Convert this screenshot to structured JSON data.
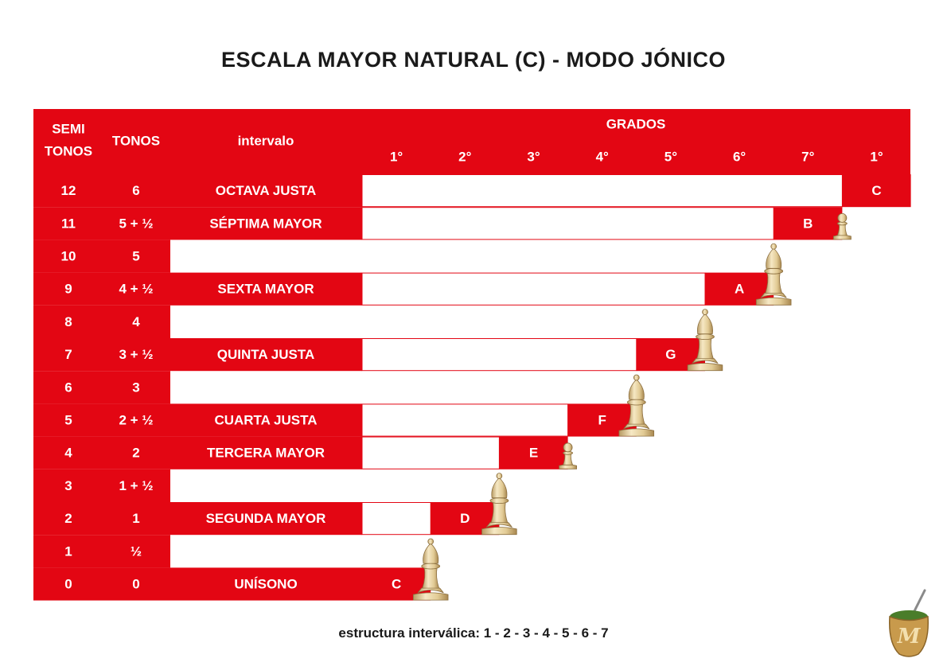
{
  "title": "ESCALA MAYOR NATURAL (C)  - MODO JÓNICO",
  "header": {
    "semitones": [
      "SEMI",
      "TONOS"
    ],
    "tones": "TONOS",
    "interval": "intervalo",
    "grades_title": "GRADOS",
    "degrees": [
      "1°",
      "2°",
      "3°",
      "4°",
      "5°",
      "6°",
      "7°",
      "1°"
    ]
  },
  "rows": [
    {
      "semitones": "12",
      "tones": "6",
      "interval": "OCTAVA JUSTA",
      "note": "C",
      "degree": 8
    },
    {
      "semitones": "11",
      "tones": "5 + ½",
      "interval": "SÉPTIMA MAYOR",
      "note": "B",
      "degree": 7
    },
    {
      "semitones": "10",
      "tones": "5",
      "interval": "",
      "note": "",
      "degree": 0
    },
    {
      "semitones": "9",
      "tones": "4 + ½",
      "interval": "SEXTA MAYOR",
      "note": "A",
      "degree": 6
    },
    {
      "semitones": "8",
      "tones": "4",
      "interval": "",
      "note": "",
      "degree": 0
    },
    {
      "semitones": "7",
      "tones": "3 + ½",
      "interval": "QUINTA JUSTA",
      "note": "G",
      "degree": 5
    },
    {
      "semitones": "6",
      "tones": "3",
      "interval": "",
      "note": "",
      "degree": 0
    },
    {
      "semitones": "5",
      "tones": "2 + ½",
      "interval": "CUARTA JUSTA",
      "note": "F",
      "degree": 4
    },
    {
      "semitones": "4",
      "tones": "2",
      "interval": "TERCERA MAYOR",
      "note": "E",
      "degree": 3
    },
    {
      "semitones": "3",
      "tones": "1 + ½",
      "interval": "",
      "note": "",
      "degree": 0
    },
    {
      "semitones": "2",
      "tones": "1",
      "interval": "SEGUNDA MAYOR",
      "note": "D",
      "degree": 2
    },
    {
      "semitones": "1",
      "tones": "½",
      "interval": "",
      "note": "",
      "degree": 0
    },
    {
      "semitones": "0",
      "tones": "0",
      "interval": "UNÍSONO",
      "note": "C",
      "degree": 1
    }
  ],
  "steps": [
    {
      "piece": "bishop-icon",
      "value": "tone"
    },
    {
      "piece": "bishop-icon",
      "value": "tone"
    },
    {
      "piece": "pawn-icon",
      "value": "semitone"
    },
    {
      "piece": "bishop-icon",
      "value": "tone"
    },
    {
      "piece": "bishop-icon",
      "value": "tone"
    },
    {
      "piece": "bishop-icon",
      "value": "tone"
    },
    {
      "piece": "pawn-icon",
      "value": "semitone"
    }
  ],
  "footer": "estructura interválica: 1 - 2 - 3 - 4 - 5 - 6 - 7",
  "colors": {
    "red": "#e30613",
    "white": "#ffffff",
    "piece": "#e9d6a8"
  },
  "logo": "mate-cup-logo"
}
